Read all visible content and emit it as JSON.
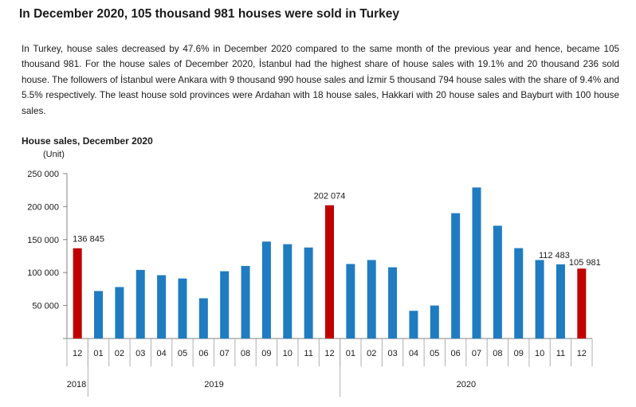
{
  "header": {
    "title": "In December 2020, 105 thousand 981 houses were sold in Turkey",
    "description": "In Turkey, house sales decreased by 47.6% in December 2020 compared to the same month of the previous year and hence, became 105 thousand 981. For the house sales of December 2020, İstanbul had the highest share of house sales with 19.1% and 20 thousand 236 sold house. The followers of İstanbul were Ankara with 9 thousand 990 house sales and İzmir 5 thousand 794 house sales with the share of 9.4% and 5.5% respectively. The least house sold provinces were Ardahan with 18 house sales, Hakkari with 20 house sales and Bayburt with 100 house sales."
  },
  "chart_data": {
    "type": "bar",
    "title": "House sales, December 2020",
    "ylabel": "(Unit)",
    "ylim": [
      0,
      250000
    ],
    "yticks": [
      0,
      50000,
      100000,
      150000,
      200000,
      250000
    ],
    "ytick_labels": [
      "",
      "50 000",
      "100 000",
      "150 000",
      "200 000",
      "250 000"
    ],
    "categories": [
      "12",
      "01",
      "02",
      "03",
      "04",
      "05",
      "06",
      "07",
      "08",
      "09",
      "10",
      "11",
      "12",
      "01",
      "02",
      "03",
      "04",
      "05",
      "06",
      "07",
      "08",
      "09",
      "10",
      "11",
      "12"
    ],
    "values": [
      136845,
      72000,
      78000,
      104000,
      96000,
      91000,
      61000,
      102000,
      110000,
      147000,
      143000,
      138000,
      202074,
      113000,
      119000,
      108000,
      42000,
      50000,
      190000,
      229000,
      171000,
      137000,
      119000,
      112483,
      105981
    ],
    "highlight_indices": [
      0,
      12,
      24
    ],
    "data_labels": [
      {
        "index": 0,
        "text": "136 845"
      },
      {
        "index": 12,
        "text": "202 074"
      },
      {
        "index": 23,
        "text": "112 483"
      },
      {
        "index": 24,
        "text": "105 981"
      }
    ],
    "year_groups": [
      {
        "label": "2018",
        "start": 0,
        "end": 0
      },
      {
        "label": "2019",
        "start": 1,
        "end": 12
      },
      {
        "label": "2020",
        "start": 13,
        "end": 24
      }
    ],
    "colors": {
      "bar": "#1f7cc1",
      "highlight": "#c00000",
      "axis": "#808080"
    }
  }
}
